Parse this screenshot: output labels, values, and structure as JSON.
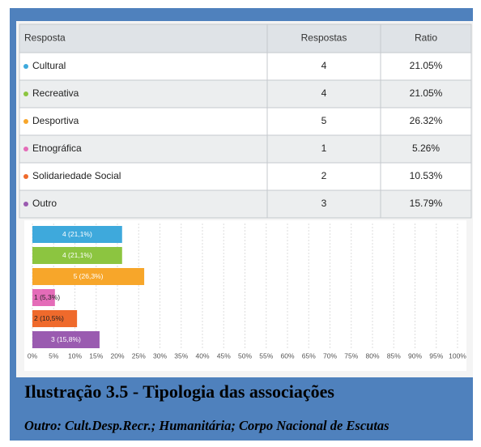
{
  "table": {
    "headers": [
      "Resposta",
      "Respostas",
      "Ratio"
    ],
    "rows": [
      [
        "Cultural",
        4,
        "21.05%"
      ],
      [
        "Recreativa",
        4,
        "21.05%"
      ],
      [
        "Desportiva",
        5,
        "26.32%"
      ],
      [
        "Etnográfica",
        1,
        "5.26%"
      ],
      [
        "Solidariedade Social",
        2,
        "10.53%"
      ],
      [
        "Outro",
        3,
        "15.79%"
      ]
    ]
  },
  "chart_data": {
    "type": "bar",
    "orientation": "horizontal",
    "categories": [
      "Cultural",
      "Recreativa",
      "Desportiva",
      "Etnográfica",
      "Solidariedade Social",
      "Outro"
    ],
    "values": [
      21.1,
      21.1,
      26.3,
      5.3,
      10.5,
      15.8
    ],
    "value_labels": [
      "4 (21,1%)",
      "4 (21,1%)",
      "5 (26,3%)",
      "1 (5,3%)",
      "2 (10,5%)",
      "3 (15,8%)"
    ],
    "colors": [
      "#3ea9dc",
      "#8cc540",
      "#f7a62a",
      "#e46cb8",
      "#ef6a2c",
      "#9a5bb0"
    ],
    "xlim": [
      0,
      100
    ],
    "xticks": [
      {
        "value": 0,
        "label": "0%"
      },
      {
        "value": 5,
        "label": "5%"
      },
      {
        "value": 10,
        "label": "10%"
      },
      {
        "value": 15,
        "label": "15%"
      },
      {
        "value": 20,
        "label": "20%"
      },
      {
        "value": 25,
        "label": "25%"
      },
      {
        "value": 30,
        "label": "30%"
      },
      {
        "value": 35,
        "label": "35%"
      },
      {
        "value": 40,
        "label": "40%"
      },
      {
        "value": 45,
        "label": "45%"
      },
      {
        "value": 50,
        "label": "50%"
      },
      {
        "value": 55,
        "label": "55%"
      },
      {
        "value": 60,
        "label": "60%"
      },
      {
        "value": 65,
        "label": "65%"
      },
      {
        "value": 70,
        "label": "70%"
      },
      {
        "value": 75,
        "label": "75%"
      },
      {
        "value": 80,
        "label": "80%"
      },
      {
        "value": 85,
        "label": "85%"
      },
      {
        "value": 90,
        "label": "90%"
      },
      {
        "value": 95,
        "label": "95%"
      },
      {
        "value": 100,
        "label": "100%"
      }
    ],
    "grid": true
  },
  "caption": {
    "title": "Ilustração 3.5 - Tipologia das associações",
    "subtitle": "Outro: Cult.Desp.Recr.; Humanitária; Corpo Nacional de Escutas"
  }
}
